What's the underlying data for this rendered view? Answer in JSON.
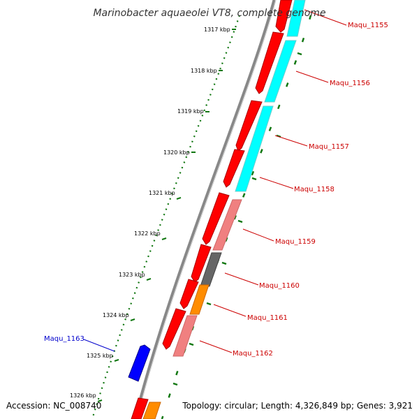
{
  "title": "Marinobacter aquaeolei VT8, complete genome",
  "footer": {
    "accession": "Accession: NC_008740",
    "topology": "Topology: circular; Length: 4,326,849 bp; Genes: 3,921"
  },
  "ticks": [
    "1317 kbp",
    "1318 kbp",
    "1319 kbp",
    "1320 kbp",
    "1321 kbp",
    "1322 kbp",
    "1323 kbp",
    "1324 kbp",
    "1325 kbp",
    "1326 kbp"
  ],
  "genes": [
    {
      "id": "Maqu_1155",
      "color": "#cc0000"
    },
    {
      "id": "Maqu_1156",
      "color": "#cc0000"
    },
    {
      "id": "Maqu_1157",
      "color": "#cc0000"
    },
    {
      "id": "Maqu_1158",
      "color": "#cc0000"
    },
    {
      "id": "Maqu_1159",
      "color": "#cc0000"
    },
    {
      "id": "Maqu_1160",
      "color": "#cc0000"
    },
    {
      "id": "Maqu_1161",
      "color": "#cc0000"
    },
    {
      "id": "Maqu_1162",
      "color": "#cc0000"
    },
    {
      "id": "Maqu_1163",
      "color": "#0000cc"
    }
  ],
  "colors": {
    "forward_cds": "#ff0000",
    "reverse_cds": "#0000ff",
    "track_cyan": "#00ffff",
    "track_pink": "#f08080",
    "track_gray": "#666666",
    "track_orange": "#ff8c00",
    "tick_green": "#117711",
    "backbone": "#888888"
  }
}
